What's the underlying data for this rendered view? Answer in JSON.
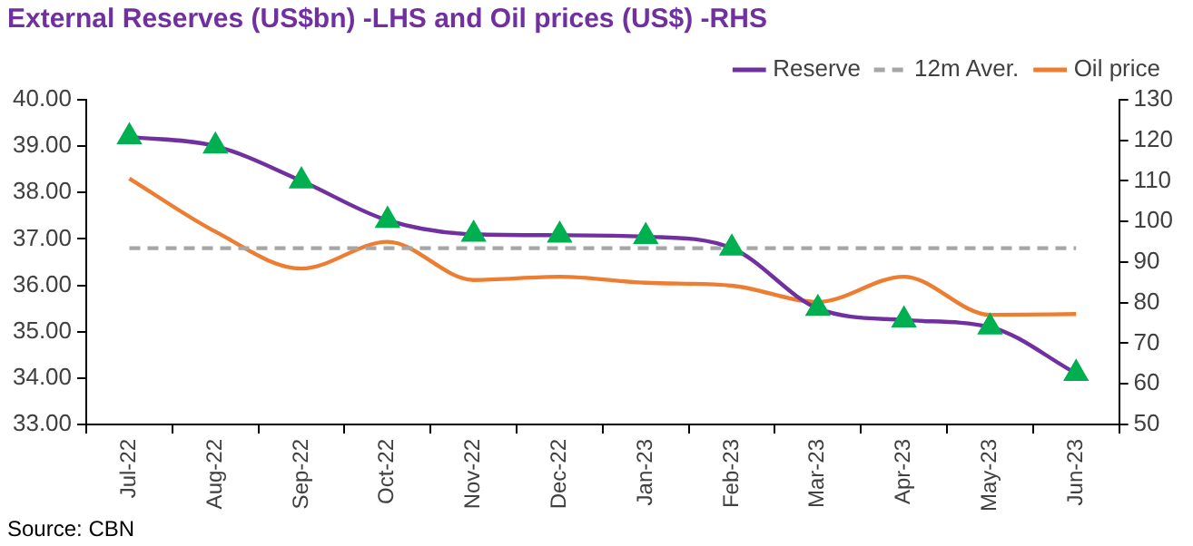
{
  "chart_data": {
    "type": "line",
    "title": "External Reserves (US$bn) -LHS and Oil prices (US$) -RHS",
    "categories": [
      "Jul-22",
      "Aug-22",
      "Sep-22",
      "Oct-22",
      "Nov-22",
      "Dec-22",
      "Jan-23",
      "Feb-23",
      "Mar-23",
      "Apr-23",
      "May-23",
      "Jun-23"
    ],
    "series": [
      {
        "name": "Reserve",
        "color": "#7030a0",
        "marker": "triangle",
        "colors": [
          "#00b050",
          "#00b050",
          "#00b050",
          "#00b050",
          "#00b050",
          "#00b050",
          "#00b050",
          "#00b050",
          "#00b050",
          "#00b050",
          "#00b050",
          "#00b050"
        ],
        "values": [
          39.2,
          39.0,
          38.25,
          37.4,
          37.1,
          37.08,
          37.05,
          36.8,
          35.5,
          35.25,
          35.1,
          34.1
        ]
      },
      {
        "name": "12m Aver.",
        "color": "#a6a6a6",
        "line_style": "dashed",
        "marker": "none",
        "values": [
          36.8,
          36.8,
          36.8,
          36.8,
          36.8,
          36.8,
          36.8,
          36.8,
          36.8,
          36.8,
          36.8,
          36.8
        ]
      },
      {
        "name": "Oil price",
        "color": "#ed7d31",
        "marker": "none",
        "axis": "y2",
        "values": [
          110.6,
          97.5,
          88.4,
          95,
          85.6,
          86.4,
          84.9,
          84.2,
          80.2,
          86.4,
          77,
          77.2
        ]
      }
    ],
    "ylim": [
      33,
      40
    ],
    "yticks": [
      {
        "value": 33,
        "label": "33.00"
      },
      {
        "value": 34,
        "label": "34.00"
      },
      {
        "value": 35,
        "label": "35.00"
      },
      {
        "value": 36,
        "label": "36.00"
      },
      {
        "value": 37,
        "label": "37.00"
      },
      {
        "value": 38,
        "label": "38.00"
      },
      {
        "value": 39,
        "label": "39.00"
      },
      {
        "value": 40,
        "label": "40.00"
      }
    ],
    "y2lim": [
      50,
      130
    ],
    "y2ticks": [
      50,
      60,
      70,
      80,
      90,
      100,
      110,
      120,
      130
    ],
    "grid": false,
    "legend": "top",
    "annotations": [
      "Source: CBN"
    ]
  }
}
